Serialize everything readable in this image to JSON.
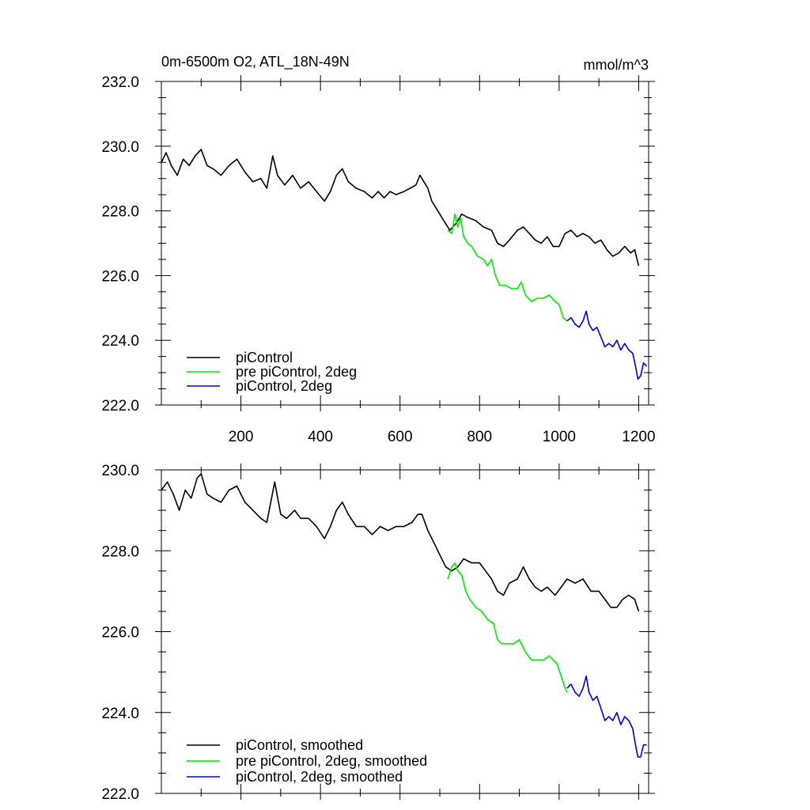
{
  "chart_data": [
    {
      "type": "line",
      "title": "0m-6500m O2, ATL_18N-49N",
      "units": "mmol/m^3",
      "xlabel": "",
      "ylabel": "",
      "xlim": [
        0,
        1225
      ],
      "ylim": [
        222.0,
        232.0
      ],
      "xticks": [
        200,
        400,
        600,
        800,
        1000,
        1200
      ],
      "xtick_labels": [
        "200",
        "400",
        "600",
        "800",
        "1000",
        "1200"
      ],
      "yticks": [
        222.0,
        224.0,
        226.0,
        228.0,
        230.0,
        232.0
      ],
      "ytick_labels": [
        "222.0",
        "224.0",
        "226.0",
        "228.0",
        "230.0",
        "232.0"
      ],
      "legend_position": "bottom-left",
      "series": [
        {
          "name": "piControl",
          "color": "#000000",
          "points": [
            [
              0,
              229.5
            ],
            [
              12,
              229.8
            ],
            [
              25,
              229.4
            ],
            [
              40,
              229.1
            ],
            [
              55,
              229.6
            ],
            [
              70,
              229.4
            ],
            [
              85,
              229.7
            ],
            [
              100,
              229.9
            ],
            [
              115,
              229.4
            ],
            [
              130,
              229.3
            ],
            [
              150,
              229.1
            ],
            [
              170,
              229.4
            ],
            [
              190,
              229.6
            ],
            [
              210,
              229.2
            ],
            [
              230,
              228.9
            ],
            [
              250,
              229.0
            ],
            [
              265,
              228.7
            ],
            [
              280,
              229.7
            ],
            [
              292,
              229.1
            ],
            [
              310,
              228.8
            ],
            [
              330,
              229.1
            ],
            [
              350,
              228.7
            ],
            [
              370,
              228.9
            ],
            [
              390,
              228.6
            ],
            [
              410,
              228.3
            ],
            [
              425,
              228.6
            ],
            [
              440,
              229.1
            ],
            [
              455,
              229.3
            ],
            [
              470,
              228.9
            ],
            [
              490,
              228.7
            ],
            [
              510,
              228.6
            ],
            [
              530,
              228.4
            ],
            [
              545,
              228.6
            ],
            [
              560,
              228.4
            ],
            [
              575,
              228.6
            ],
            [
              590,
              228.5
            ],
            [
              610,
              228.6
            ],
            [
              625,
              228.7
            ],
            [
              640,
              228.8
            ],
            [
              650,
              229.1
            ],
            [
              660,
              228.9
            ],
            [
              670,
              228.7
            ],
            [
              680,
              228.3
            ],
            [
              695,
              228.0
            ],
            [
              710,
              227.7
            ],
            [
              725,
              227.4
            ],
            [
              740,
              227.6
            ],
            [
              755,
              227.9
            ],
            [
              770,
              227.8
            ],
            [
              790,
              227.7
            ],
            [
              810,
              227.5
            ],
            [
              830,
              227.4
            ],
            [
              845,
              227.0
            ],
            [
              860,
              226.9
            ],
            [
              875,
              227.1
            ],
            [
              895,
              227.4
            ],
            [
              910,
              227.5
            ],
            [
              925,
              227.3
            ],
            [
              940,
              227.1
            ],
            [
              955,
              227.0
            ],
            [
              970,
              227.2
            ],
            [
              985,
              226.9
            ],
            [
              1000,
              226.9
            ],
            [
              1015,
              227.3
            ],
            [
              1030,
              227.4
            ],
            [
              1045,
              227.2
            ],
            [
              1060,
              227.3
            ],
            [
              1075,
              227.2
            ],
            [
              1090,
              227.0
            ],
            [
              1105,
              227.1
            ],
            [
              1120,
              226.8
            ],
            [
              1135,
              226.6
            ],
            [
              1150,
              226.7
            ],
            [
              1165,
              226.9
            ],
            [
              1180,
              226.7
            ],
            [
              1190,
              226.8
            ],
            [
              1200,
              226.3
            ]
          ]
        },
        {
          "name": "pre piControl, 2deg",
          "color": "#00ee00",
          "points": [
            [
              720,
              227.4
            ],
            [
              730,
              227.3
            ],
            [
              738,
              227.9
            ],
            [
              745,
              227.5
            ],
            [
              752,
              227.8
            ],
            [
              760,
              227.2
            ],
            [
              770,
              227.0
            ],
            [
              780,
              226.9
            ],
            [
              795,
              226.6
            ],
            [
              810,
              226.5
            ],
            [
              820,
              226.3
            ],
            [
              830,
              226.5
            ],
            [
              840,
              226.0
            ],
            [
              850,
              225.7
            ],
            [
              865,
              225.7
            ],
            [
              880,
              225.6
            ],
            [
              895,
              225.6
            ],
            [
              905,
              225.8
            ],
            [
              915,
              225.4
            ],
            [
              930,
              225.2
            ],
            [
              945,
              225.3
            ],
            [
              960,
              225.3
            ],
            [
              975,
              225.4
            ],
            [
              990,
              225.2
            ],
            [
              1000,
              225.1
            ],
            [
              1010,
              224.7
            ],
            [
              1020,
              224.6
            ]
          ]
        },
        {
          "name": "piControl, 2deg",
          "color": "#0000ee",
          "points": [
            [
              1020,
              224.6
            ],
            [
              1030,
              224.7
            ],
            [
              1040,
              224.5
            ],
            [
              1050,
              224.4
            ],
            [
              1060,
              224.6
            ],
            [
              1068,
              224.9
            ],
            [
              1075,
              224.5
            ],
            [
              1085,
              224.3
            ],
            [
              1095,
              224.4
            ],
            [
              1105,
              224.1
            ],
            [
              1115,
              223.8
            ],
            [
              1125,
              223.9
            ],
            [
              1135,
              223.8
            ],
            [
              1145,
              224.0
            ],
            [
              1155,
              223.7
            ],
            [
              1165,
              223.9
            ],
            [
              1175,
              223.7
            ],
            [
              1185,
              223.6
            ],
            [
              1192,
              223.2
            ],
            [
              1198,
              222.8
            ],
            [
              1205,
              222.9
            ],
            [
              1212,
              223.3
            ],
            [
              1220,
              223.2
            ]
          ]
        }
      ]
    },
    {
      "type": "line",
      "title": "",
      "xlabel": "",
      "ylabel": "",
      "xlim": [
        0,
        1225
      ],
      "ylim": [
        222.0,
        230.0
      ],
      "xticks": [
        200,
        400,
        600,
        800,
        1000,
        1200
      ],
      "xtick_labels": [],
      "yticks": [
        222.0,
        224.0,
        226.0,
        228.0,
        230.0
      ],
      "ytick_labels": [
        "222.0",
        "224.0",
        "226.0",
        "228.0",
        "230.0"
      ],
      "legend_position": "bottom-left",
      "series": [
        {
          "name": "piControl, smoothed",
          "color": "#000000",
          "points": [
            [
              0,
              229.5
            ],
            [
              15,
              229.7
            ],
            [
              30,
              229.4
            ],
            [
              45,
              229.0
            ],
            [
              60,
              229.5
            ],
            [
              75,
              229.3
            ],
            [
              90,
              229.8
            ],
            [
              100,
              229.9
            ],
            [
              115,
              229.4
            ],
            [
              130,
              229.3
            ],
            [
              150,
              229.2
            ],
            [
              170,
              229.5
            ],
            [
              190,
              229.6
            ],
            [
              210,
              229.2
            ],
            [
              230,
              229.0
            ],
            [
              250,
              228.8
            ],
            [
              265,
              228.7
            ],
            [
              285,
              229.7
            ],
            [
              300,
              228.9
            ],
            [
              315,
              228.8
            ],
            [
              335,
              229.0
            ],
            [
              350,
              228.8
            ],
            [
              370,
              228.8
            ],
            [
              390,
              228.6
            ],
            [
              410,
              228.3
            ],
            [
              425,
              228.6
            ],
            [
              440,
              229.0
            ],
            [
              455,
              229.2
            ],
            [
              470,
              228.9
            ],
            [
              490,
              228.6
            ],
            [
              510,
              228.6
            ],
            [
              530,
              228.4
            ],
            [
              550,
              228.6
            ],
            [
              570,
              228.5
            ],
            [
              590,
              228.6
            ],
            [
              610,
              228.6
            ],
            [
              630,
              228.7
            ],
            [
              645,
              228.9
            ],
            [
              655,
              228.9
            ],
            [
              670,
              228.5
            ],
            [
              685,
              228.2
            ],
            [
              700,
              227.9
            ],
            [
              715,
              227.6
            ],
            [
              730,
              227.5
            ],
            [
              745,
              227.6
            ],
            [
              760,
              227.8
            ],
            [
              780,
              227.7
            ],
            [
              800,
              227.7
            ],
            [
              815,
              227.5
            ],
            [
              830,
              227.3
            ],
            [
              845,
              227.0
            ],
            [
              860,
              226.9
            ],
            [
              875,
              227.2
            ],
            [
              895,
              227.3
            ],
            [
              910,
              227.6
            ],
            [
              925,
              227.3
            ],
            [
              940,
              227.1
            ],
            [
              955,
              227.0
            ],
            [
              970,
              227.1
            ],
            [
              990,
              226.9
            ],
            [
              1005,
              227.1
            ],
            [
              1020,
              227.3
            ],
            [
              1040,
              227.2
            ],
            [
              1060,
              227.3
            ],
            [
              1080,
              227.0
            ],
            [
              1100,
              227.0
            ],
            [
              1115,
              226.8
            ],
            [
              1130,
              226.6
            ],
            [
              1145,
              226.6
            ],
            [
              1160,
              226.8
            ],
            [
              1175,
              226.9
            ],
            [
              1190,
              226.8
            ],
            [
              1200,
              226.5
            ]
          ]
        },
        {
          "name": "pre piControl, 2deg, smoothed",
          "color": "#00ee00",
          "points": [
            [
              720,
              227.3
            ],
            [
              730,
              227.6
            ],
            [
              738,
              227.7
            ],
            [
              745,
              227.5
            ],
            [
              755,
              227.4
            ],
            [
              765,
              227.0
            ],
            [
              775,
              226.8
            ],
            [
              790,
              226.6
            ],
            [
              805,
              226.5
            ],
            [
              820,
              226.3
            ],
            [
              835,
              226.2
            ],
            [
              845,
              225.8
            ],
            [
              855,
              225.7
            ],
            [
              870,
              225.7
            ],
            [
              885,
              225.7
            ],
            [
              900,
              225.8
            ],
            [
              915,
              225.5
            ],
            [
              930,
              225.3
            ],
            [
              945,
              225.3
            ],
            [
              960,
              225.3
            ],
            [
              975,
              225.4
            ],
            [
              985,
              225.3
            ],
            [
              995,
              225.2
            ],
            [
              1005,
              224.9
            ],
            [
              1015,
              224.6
            ],
            [
              1020,
              224.5
            ]
          ]
        },
        {
          "name": "piControl, 2deg, smoothed",
          "color": "#0000ee",
          "points": [
            [
              1020,
              224.6
            ],
            [
              1030,
              224.7
            ],
            [
              1040,
              224.5
            ],
            [
              1050,
              224.4
            ],
            [
              1060,
              224.6
            ],
            [
              1068,
              224.9
            ],
            [
              1075,
              224.5
            ],
            [
              1085,
              224.3
            ],
            [
              1095,
              224.4
            ],
            [
              1105,
              224.1
            ],
            [
              1115,
              223.8
            ],
            [
              1125,
              223.9
            ],
            [
              1135,
              223.8
            ],
            [
              1145,
              224.0
            ],
            [
              1155,
              223.7
            ],
            [
              1165,
              223.9
            ],
            [
              1175,
              223.8
            ],
            [
              1185,
              223.6
            ],
            [
              1192,
              223.2
            ],
            [
              1198,
              222.9
            ],
            [
              1205,
              222.9
            ],
            [
              1212,
              223.2
            ],
            [
              1220,
              223.2
            ]
          ]
        }
      ]
    }
  ]
}
